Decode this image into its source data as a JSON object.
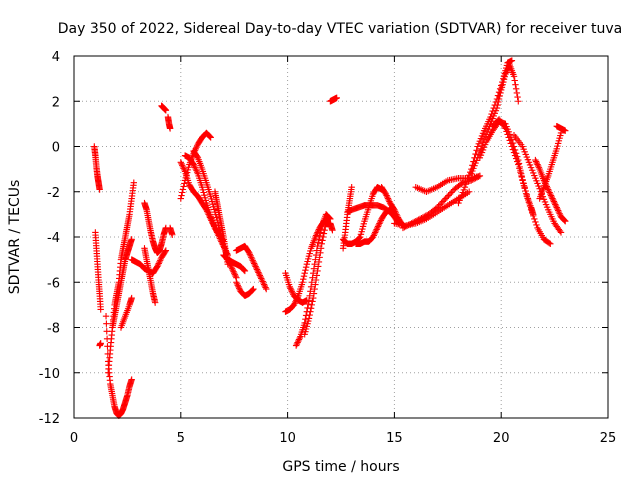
{
  "chart_data": {
    "type": "scatter",
    "title": "Day 350 of 2022, Sidereal Day-to-day VTEC variation (SDTVAR) for receiver tuva",
    "xlabel": "GPS time / hours",
    "ylabel": "SDTVAR / TECUs",
    "xlim": [
      0,
      25
    ],
    "ylim": [
      -12,
      4
    ],
    "xticks": [
      0,
      5,
      10,
      15,
      20,
      25
    ],
    "yticks": [
      -12,
      -10,
      -8,
      -6,
      -4,
      -2,
      0,
      2,
      4
    ],
    "xtick_labels": [
      "0",
      "5",
      "10",
      "15",
      "20",
      "25"
    ],
    "ytick_labels": [
      "-12",
      "-10",
      "-8",
      "-6",
      "-4",
      "-2",
      "0",
      "2",
      "4"
    ],
    "grid": true,
    "marker": "+",
    "color": "#ff0000",
    "series": [
      {
        "name": "track-01",
        "x": [
          0.95,
          1.0,
          1.05,
          1.1,
          1.15,
          1.2
        ],
        "y": [
          0.0,
          -0.4,
          -0.9,
          -1.3,
          -1.6,
          -1.9
        ]
      },
      {
        "name": "track-02",
        "x": [
          1.0,
          1.05,
          1.1,
          1.15,
          1.2,
          1.25
        ],
        "y": [
          -3.8,
          -4.5,
          -5.2,
          -5.9,
          -6.5,
          -7.2
        ]
      },
      {
        "name": "track-03",
        "x": [
          1.2,
          1.25
        ],
        "y": [
          -8.8,
          -8.7
        ]
      },
      {
        "name": "track-04",
        "x": [
          1.5,
          1.6,
          1.7,
          1.8,
          1.9,
          2.0,
          2.1,
          2.2,
          2.3,
          2.4,
          2.5,
          2.6,
          2.7
        ],
        "y": [
          -7.5,
          -9.5,
          -10.5,
          -11.0,
          -11.5,
          -11.8,
          -11.9,
          -11.8,
          -11.6,
          -11.3,
          -11.0,
          -10.6,
          -10.3
        ]
      },
      {
        "name": "track-05",
        "x": [
          1.6,
          1.7,
          1.8,
          1.9,
          2.0,
          2.1,
          2.2,
          2.3,
          2.4,
          2.5,
          2.6,
          2.7
        ],
        "y": [
          -10.0,
          -9.0,
          -8.0,
          -7.5,
          -7.0,
          -6.5,
          -6.0,
          -5.5,
          -5.0,
          -4.7,
          -4.4,
          -4.1
        ]
      },
      {
        "name": "track-06",
        "x": [
          1.8,
          1.9,
          2.0,
          2.1,
          2.2,
          2.3,
          2.4,
          2.5,
          2.6,
          2.7,
          2.8
        ],
        "y": [
          -8.0,
          -7.0,
          -6.5,
          -6.0,
          -5.0,
          -4.5,
          -4.0,
          -3.5,
          -3.0,
          -2.3,
          -1.6
        ]
      },
      {
        "name": "track-07",
        "x": [
          2.2,
          2.4,
          2.6,
          2.7
        ],
        "y": [
          -8.0,
          -7.5,
          -7.0,
          -6.7
        ]
      },
      {
        "name": "track-08",
        "x": [
          2.7,
          2.9,
          3.1,
          3.3,
          3.5,
          3.7,
          3.9,
          4.1,
          4.3
        ],
        "y": [
          -5.0,
          -5.1,
          -5.2,
          -5.4,
          -5.5,
          -5.6,
          -5.3,
          -4.9,
          -4.6
        ]
      },
      {
        "name": "track-09",
        "x": [
          3.3,
          3.4,
          3.5,
          3.6,
          3.7,
          3.8,
          3.9,
          4.0,
          4.1,
          4.2,
          4.3
        ],
        "y": [
          -2.5,
          -2.8,
          -3.3,
          -3.8,
          -4.2,
          -4.5,
          -4.7,
          -4.6,
          -4.3,
          -3.9,
          -3.6
        ]
      },
      {
        "name": "track-10",
        "x": [
          3.3,
          3.4,
          3.5,
          3.6,
          3.7,
          3.8
        ],
        "y": [
          -4.5,
          -5.0,
          -5.5,
          -6.0,
          -6.5,
          -6.9
        ]
      },
      {
        "name": "track-11",
        "x": [
          4.1,
          4.2,
          4.3
        ],
        "y": [
          1.8,
          1.7,
          1.6
        ]
      },
      {
        "name": "track-12",
        "x": [
          4.4,
          4.45,
          4.5
        ],
        "y": [
          1.3,
          1.0,
          0.8
        ]
      },
      {
        "name": "track-13",
        "x": [
          4.5,
          4.6
        ],
        "y": [
          -3.6,
          -3.9
        ]
      },
      {
        "name": "track-14",
        "x": [
          5.0,
          5.2,
          5.4,
          5.6,
          5.8,
          6.0,
          6.2,
          6.4
        ],
        "y": [
          -2.3,
          -1.5,
          -0.8,
          -0.3,
          0.1,
          0.4,
          0.6,
          0.4
        ]
      },
      {
        "name": "track-15",
        "x": [
          5.0,
          5.2,
          5.4,
          5.6,
          5.8,
          6.0,
          6.2,
          6.4,
          6.6,
          6.8,
          7.0,
          7.2
        ],
        "y": [
          -0.7,
          -1.1,
          -1.7,
          -2.0,
          -2.2,
          -2.5,
          -2.8,
          -3.2,
          -3.6,
          -4.0,
          -4.4,
          -4.8
        ]
      },
      {
        "name": "track-16",
        "x": [
          5.2,
          5.4,
          5.6,
          5.8,
          6.0,
          6.2,
          6.4,
          6.6,
          6.8,
          7.0
        ],
        "y": [
          -0.4,
          -0.5,
          -0.8,
          -1.2,
          -1.8,
          -2.5,
          -3.1,
          -3.6,
          -3.9,
          -4.2
        ]
      },
      {
        "name": "track-17",
        "x": [
          5.6,
          5.8,
          6.0,
          6.2,
          6.4,
          6.6,
          6.8,
          7.0,
          7.2,
          7.4,
          7.6
        ],
        "y": [
          -0.2,
          -0.5,
          -1.0,
          -1.6,
          -2.2,
          -2.9,
          -3.6,
          -4.3,
          -5.0,
          -5.4,
          -5.8
        ]
      },
      {
        "name": "track-18",
        "x": [
          6.6,
          6.7,
          6.8,
          6.9,
          7.0,
          7.1,
          7.2
        ],
        "y": [
          -2.0,
          -2.5,
          -3.0,
          -3.5,
          -4.0,
          -4.6,
          -5.2
        ]
      },
      {
        "name": "track-19",
        "x": [
          7.0,
          7.2,
          7.4,
          7.6,
          7.8,
          8.0
        ],
        "y": [
          -4.8,
          -5.0,
          -5.1,
          -5.2,
          -5.3,
          -5.5
        ]
      },
      {
        "name": "track-20",
        "x": [
          7.6,
          7.8,
          8.0,
          8.2,
          8.4,
          8.6,
          8.8,
          9.0
        ],
        "y": [
          -4.6,
          -4.5,
          -4.4,
          -4.7,
          -5.1,
          -5.5,
          -5.9,
          -6.3
        ]
      },
      {
        "name": "track-21",
        "x": [
          7.6,
          7.8,
          8.0,
          8.2,
          8.4
        ],
        "y": [
          -6.0,
          -6.4,
          -6.6,
          -6.5,
          -6.3
        ]
      },
      {
        "name": "track-22",
        "x": [
          9.9,
          10.1,
          10.3,
          10.5,
          10.7,
          10.9
        ],
        "y": [
          -5.6,
          -6.2,
          -6.6,
          -6.8,
          -6.9,
          -6.8
        ]
      },
      {
        "name": "track-23",
        "x": [
          9.9,
          10.1,
          10.3,
          10.5,
          10.7,
          10.9,
          11.1,
          11.3,
          11.5,
          11.7,
          11.9
        ],
        "y": [
          -7.3,
          -7.2,
          -7.0,
          -6.6,
          -6.0,
          -5.2,
          -4.5,
          -4.0,
          -3.6,
          -3.3,
          -3.2
        ]
      },
      {
        "name": "track-24",
        "x": [
          10.4,
          10.6,
          10.8,
          11.0,
          11.2,
          11.4,
          11.6,
          11.8,
          12.0
        ],
        "y": [
          -8.8,
          -8.4,
          -7.8,
          -6.8,
          -5.6,
          -4.4,
          -3.5,
          -3.0,
          -3.2
        ]
      },
      {
        "name": "track-25",
        "x": [
          10.8,
          11.0,
          11.2,
          11.4,
          11.6,
          11.8,
          12.0,
          12.1
        ],
        "y": [
          -8.3,
          -7.6,
          -6.7,
          -5.5,
          -4.3,
          -3.4,
          -3.4,
          -3.7
        ]
      },
      {
        "name": "track-26",
        "x": [
          12.0,
          12.1,
          12.2,
          12.3
        ],
        "y": [
          2.0,
          2.05,
          2.1,
          2.15
        ]
      },
      {
        "name": "track-27",
        "x": [
          12.6,
          12.7,
          12.8,
          12.9,
          13.0
        ],
        "y": [
          -4.5,
          -3.8,
          -3.0,
          -2.4,
          -1.8
        ]
      },
      {
        "name": "track-28",
        "x": [
          12.6,
          12.8,
          13.0,
          13.2,
          13.4,
          13.6,
          13.8,
          14.0,
          14.2,
          14.4
        ],
        "y": [
          -4.1,
          -4.3,
          -4.3,
          -4.2,
          -4.0,
          -3.3,
          -2.7,
          -2.1,
          -1.8,
          -1.9
        ]
      },
      {
        "name": "track-29",
        "x": [
          13.2,
          13.4,
          13.6,
          13.8,
          14.0,
          14.2,
          14.4,
          14.6,
          14.8,
          15.0,
          15.2
        ],
        "y": [
          -4.3,
          -4.3,
          -4.2,
          -4.2,
          -4.0,
          -3.6,
          -3.2,
          -2.9,
          -2.8,
          -3.1,
          -3.4
        ]
      },
      {
        "name": "track-30",
        "x": [
          12.8,
          13.0,
          13.3,
          13.6,
          13.9,
          14.2,
          14.5,
          14.8,
          15.0
        ],
        "y": [
          -2.9,
          -2.8,
          -2.7,
          -2.6,
          -2.6,
          -2.6,
          -2.7,
          -2.9,
          -3.1
        ]
      },
      {
        "name": "track-31",
        "x": [
          14.4,
          14.6,
          14.8,
          15.0,
          15.2,
          15.4
        ],
        "y": [
          -1.8,
          -2.1,
          -2.5,
          -2.8,
          -3.2,
          -3.5
        ]
      },
      {
        "name": "track-32",
        "x": [
          15.0,
          15.5,
          16.0,
          16.5,
          17.0,
          17.5,
          18.0,
          18.5
        ],
        "y": [
          -3.4,
          -3.5,
          -3.4,
          -3.2,
          -2.9,
          -2.6,
          -2.3,
          -2.0
        ]
      },
      {
        "name": "track-33",
        "x": [
          15.4,
          15.8,
          16.2,
          16.6,
          17.0,
          17.4,
          17.8,
          18.2,
          18.6,
          19.0
        ],
        "y": [
          -3.6,
          -3.4,
          -3.2,
          -3.0,
          -2.7,
          -2.3,
          -1.9,
          -1.6,
          -1.5,
          -1.3
        ]
      },
      {
        "name": "track-34",
        "x": [
          16.0,
          16.5,
          17.0,
          17.5,
          18.0,
          18.5,
          19.0
        ],
        "y": [
          -1.8,
          -2.0,
          -1.8,
          -1.5,
          -1.4,
          -1.4,
          -1.3
        ]
      },
      {
        "name": "track-35",
        "x": [
          18.0,
          18.3,
          18.6,
          18.9,
          19.2,
          19.5,
          19.8,
          20.1,
          20.3,
          20.5
        ],
        "y": [
          -2.5,
          -1.8,
          -1.0,
          0.0,
          0.7,
          1.3,
          2.1,
          3.0,
          3.7,
          3.8
        ]
      },
      {
        "name": "track-36",
        "x": [
          18.6,
          18.9,
          19.2,
          19.5,
          19.8,
          20.0,
          20.2,
          20.4,
          20.6,
          20.8
        ],
        "y": [
          -1.2,
          -0.5,
          0.3,
          1.0,
          1.7,
          2.5,
          3.2,
          3.6,
          3.1,
          2.0
        ]
      },
      {
        "name": "track-37",
        "x": [
          19.0,
          19.3,
          19.6,
          19.9,
          20.2,
          20.5,
          20.8,
          21.0,
          21.2,
          21.4,
          21.5
        ],
        "y": [
          -0.5,
          0.2,
          0.7,
          1.1,
          1.0,
          0.3,
          -0.6,
          -1.5,
          -2.2,
          -2.7,
          -3.0
        ]
      },
      {
        "name": "track-38",
        "x": [
          19.6,
          19.9,
          20.2,
          20.5,
          20.8,
          21.1,
          21.4,
          21.7,
          22.0,
          22.3
        ],
        "y": [
          0.9,
          1.2,
          0.8,
          0.0,
          -0.8,
          -1.8,
          -2.8,
          -3.6,
          -4.1,
          -4.3
        ]
      },
      {
        "name": "track-39",
        "x": [
          20.6,
          21.0,
          21.3,
          21.6,
          21.9,
          22.2,
          22.5,
          22.8
        ],
        "y": [
          0.5,
          0.0,
          -0.7,
          -1.4,
          -2.1,
          -2.8,
          -3.4,
          -3.8
        ]
      },
      {
        "name": "track-40",
        "x": [
          21.6,
          21.8,
          22.0,
          22.2,
          22.4,
          22.6,
          22.8,
          23.0
        ],
        "y": [
          -0.6,
          -1.0,
          -1.5,
          -1.9,
          -2.3,
          -2.7,
          -3.1,
          -3.3
        ]
      },
      {
        "name": "track-41",
        "x": [
          21.8,
          22.0,
          22.2,
          22.4,
          22.6,
          22.8
        ],
        "y": [
          -2.3,
          -1.8,
          -1.3,
          -0.7,
          -0.1,
          0.6
        ]
      },
      {
        "name": "track-42",
        "x": [
          22.6,
          22.8,
          23.0
        ],
        "y": [
          0.9,
          0.8,
          0.7
        ]
      }
    ]
  }
}
